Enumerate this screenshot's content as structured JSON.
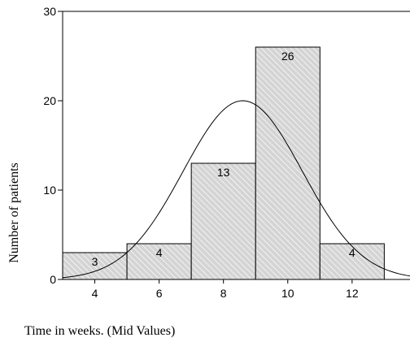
{
  "chart_data": {
    "type": "bar",
    "subtype": "histogram",
    "x": [
      4,
      6,
      8,
      10,
      12
    ],
    "values": [
      3,
      4,
      13,
      26,
      4
    ],
    "data_labels": [
      "3",
      "4",
      "13",
      "26",
      "4"
    ],
    "bin_width": 2,
    "xlabel": "Time in weeks. (Mid Values)",
    "ylabel": "Number of patients",
    "xticks": [
      "4",
      "6",
      "8",
      "10",
      "12"
    ],
    "yticks": [
      "0",
      "10",
      "20",
      "30"
    ],
    "xlim": [
      3,
      13.8
    ],
    "ylim": [
      0,
      30
    ],
    "overlay": {
      "type": "normal_curve",
      "mean": 8.6,
      "sd": 1.85,
      "peak": 20
    },
    "grid": false,
    "legend": "none",
    "colors": {
      "bar_fill": "#d4d4d4",
      "hatch": "#ffffff",
      "bar_stroke": "#000000",
      "curve": "#000000"
    }
  }
}
